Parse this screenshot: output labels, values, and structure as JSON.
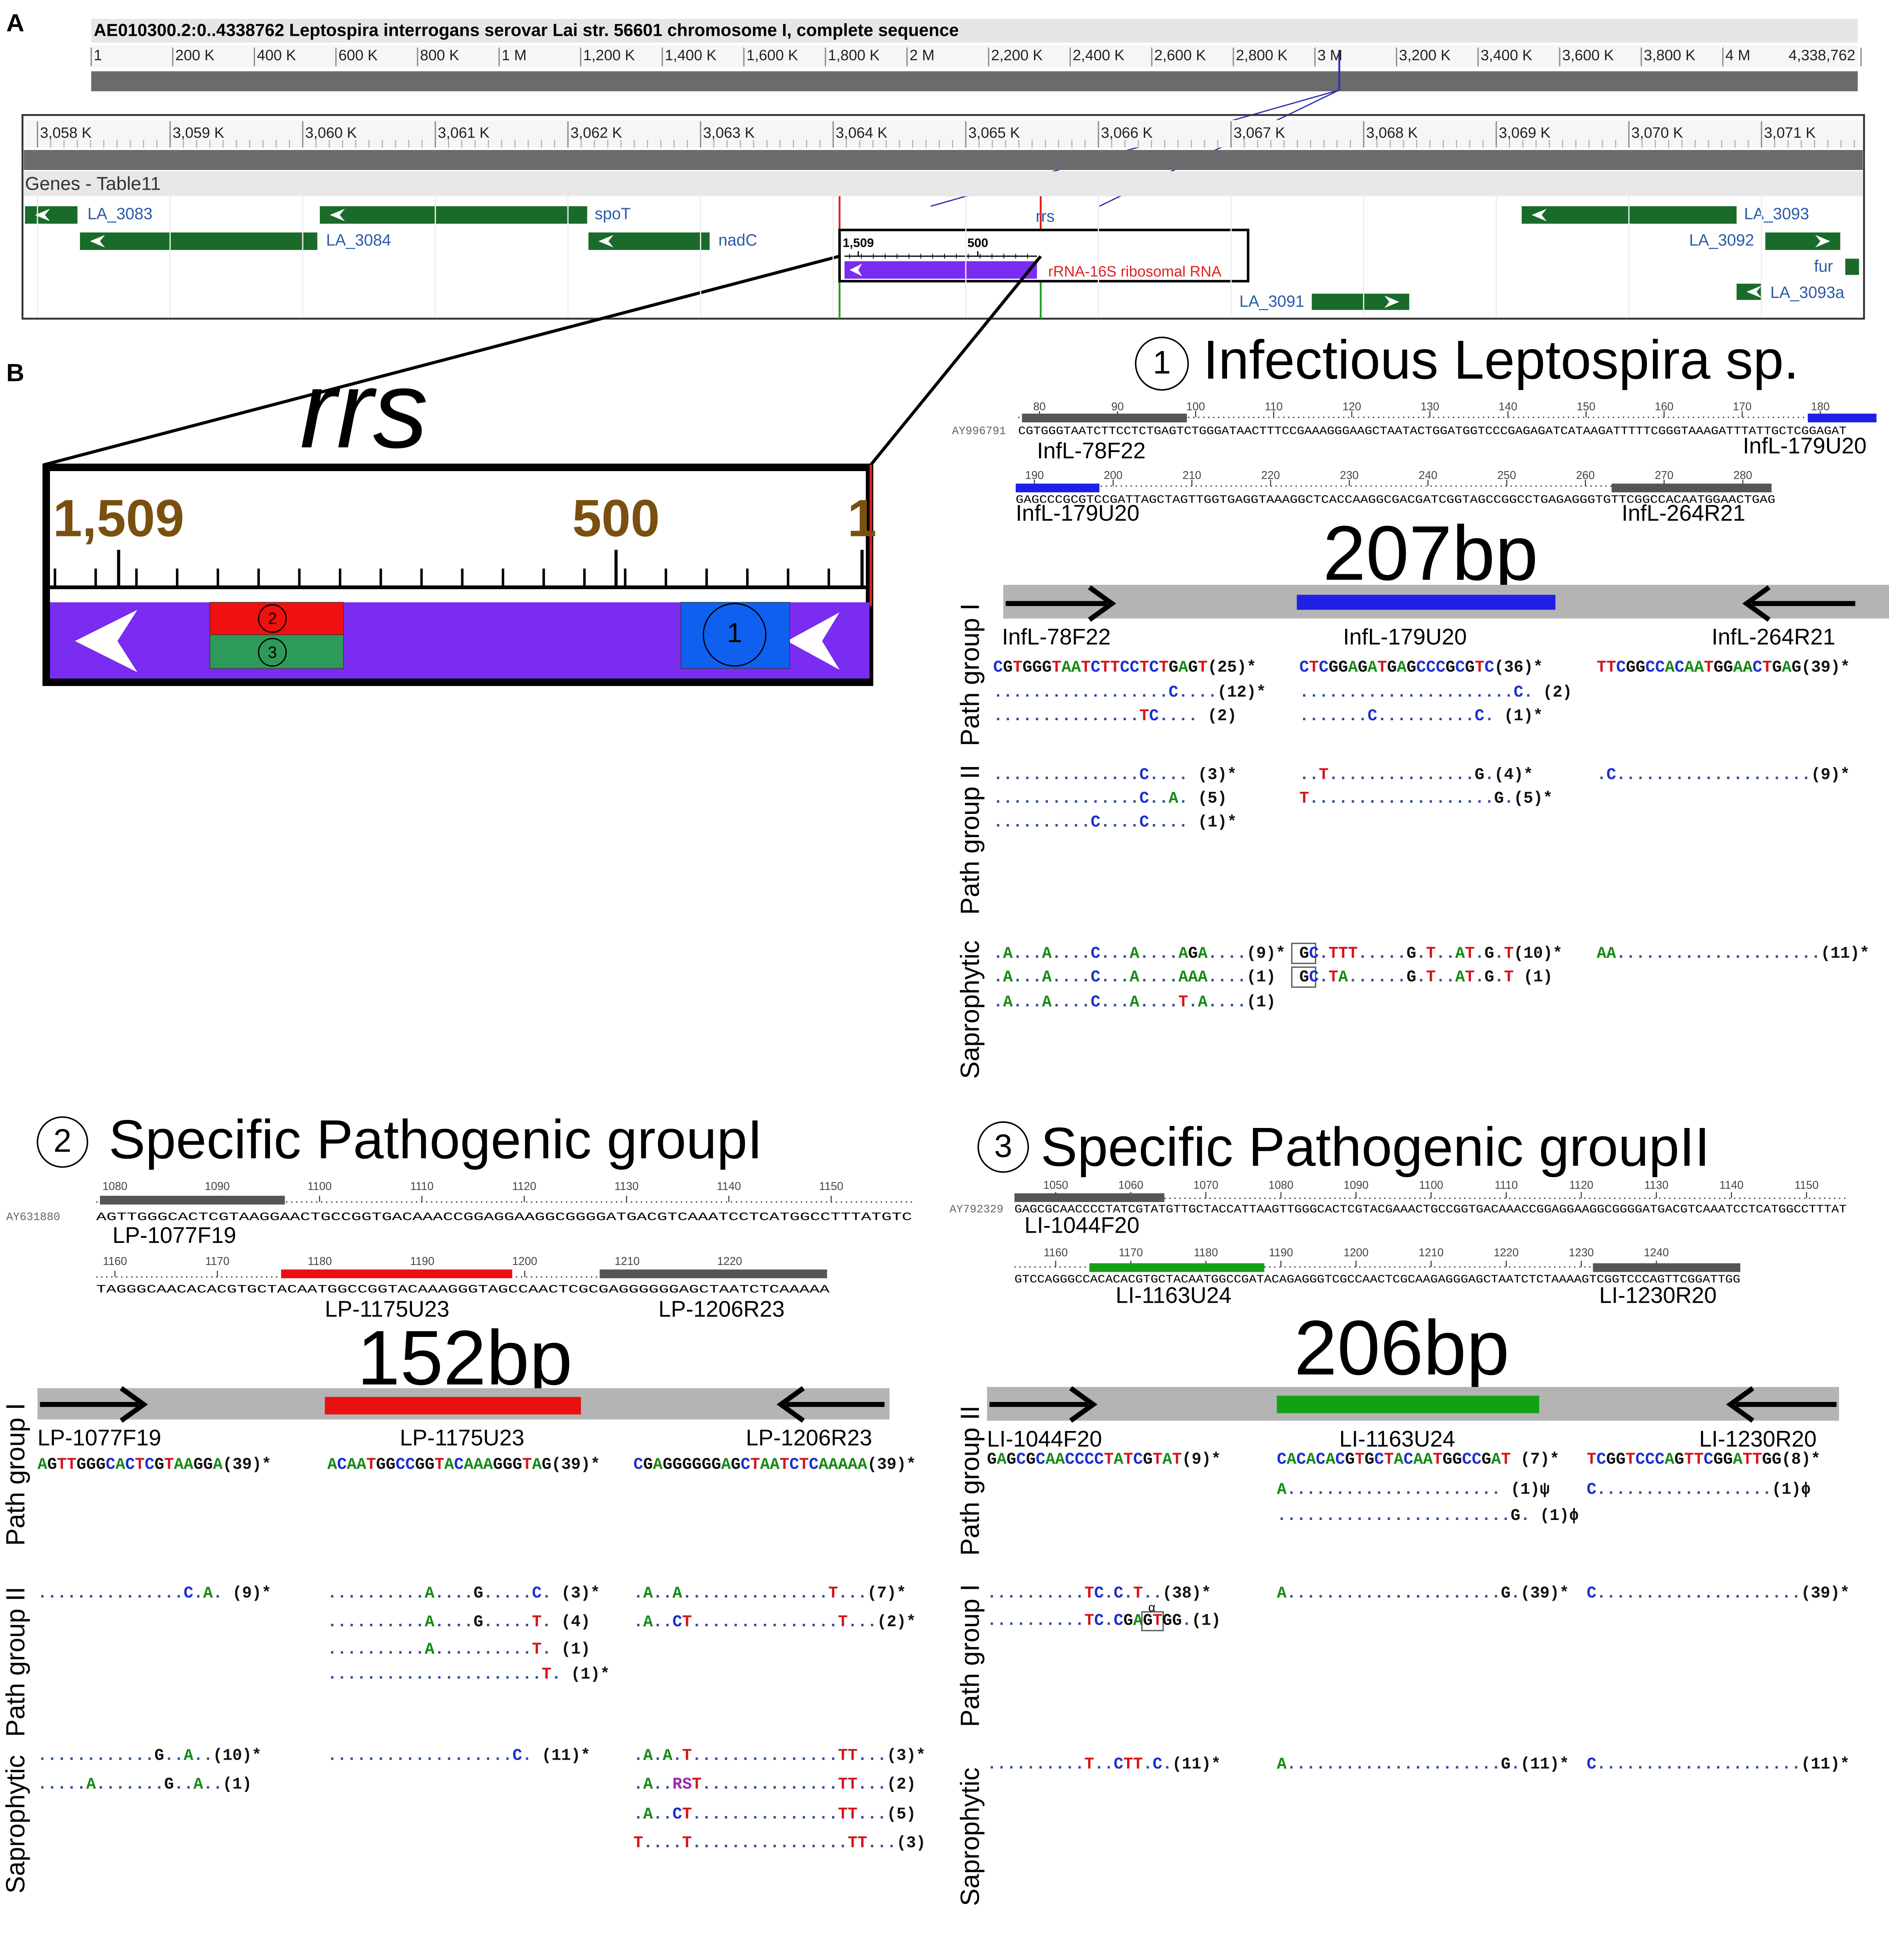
{
  "panel_a": {
    "label": "A",
    "title": "AE010300.2:0..4338762 Leptospira interrogans serovar Lai str. 56601 chromosome I, complete sequence",
    "overview_ticks": [
      1,
      {
        "value": 200000,
        "label": "200 K"
      },
      {
        "value": 400000,
        "label": "400 K"
      },
      {
        "value": 600000,
        "label": "600 K"
      },
      {
        "value": 800000,
        "label": "800 K"
      },
      {
        "value": 1000000,
        "label": "1 M"
      },
      {
        "value": 1200000,
        "label": "1,200 K"
      },
      {
        "value": 1400000,
        "label": "1,400 K"
      },
      {
        "value": 1600000,
        "label": "1,600 K"
      },
      {
        "value": 1800000,
        "label": "1,800 K"
      },
      {
        "value": 2000000,
        "label": "2 M"
      },
      {
        "value": 2200000,
        "label": "2,200 K"
      },
      {
        "value": 2400000,
        "label": "2,400 K"
      },
      {
        "value": 2600000,
        "label": "2,600 K"
      },
      {
        "value": 2800000,
        "label": "2,800 K"
      },
      {
        "value": 3000000,
        "label": "3 M"
      },
      {
        "value": 3200000,
        "label": "3,200 K"
      },
      {
        "value": 3400000,
        "label": "3,400 K"
      },
      {
        "value": 3600000,
        "label": "3,600 K"
      },
      {
        "value": 3800000,
        "label": "3,800 K"
      },
      {
        "value": 4000000,
        "label": "4 M"
      },
      {
        "value": 4338762,
        "label": "4,338,762"
      }
    ],
    "detail_ticks": [
      {
        "value": 3058000,
        "label": "3,058 K"
      },
      {
        "value": 3059000,
        "label": "3,059 K"
      },
      {
        "value": 3060000,
        "label": "3,060 K"
      },
      {
        "value": 3061000,
        "label": "3,061 K"
      },
      {
        "value": 3062000,
        "label": "3,062 K"
      },
      {
        "value": 3063000,
        "label": "3,063 K"
      },
      {
        "value": 3064000,
        "label": "3,064 K"
      },
      {
        "value": 3065000,
        "label": "3,065 K"
      },
      {
        "value": 3066000,
        "label": "3,066 K"
      },
      {
        "value": 3067000,
        "label": "3,067 K"
      },
      {
        "value": 3068000,
        "label": "3,068 K"
      },
      {
        "value": 3069000,
        "label": "3,069 K"
      },
      {
        "value": 3070000,
        "label": "3,070 K"
      },
      {
        "value": 3071000,
        "label": "3,071 K"
      }
    ],
    "track": "Genes - Table11",
    "genes": [
      "LA_3083",
      "spoT",
      "LA_3084",
      "nadC",
      "rrs",
      "LA_3093",
      "LA_3092",
      "fur",
      "LA_3091",
      "LA_3093a"
    ],
    "feature_ticks": [
      {
        "value": 1509,
        "label": "1,509"
      },
      500
    ],
    "feature": "rRNA-16S ribosomal RNA"
  },
  "panel_b": {
    "label": "B",
    "gene": "rrs",
    "ticks": [
      {
        "value": 1509,
        "label": "1,509"
      },
      500,
      1
    ],
    "regions": [
      "1",
      "2",
      "3"
    ]
  },
  "sections": [
    {
      "number": "1",
      "title": "Infectious Leptospira sp.",
      "accession": "AY996791",
      "reference": [
        {
          "positions": [
            80,
            90,
            100,
            110,
            120,
            130,
            140,
            150,
            160,
            170,
            180
          ],
          "sequence": "CGTGGGTAATCTTCCTCTGAGTCTGGGATAACTTTCCGAAAGGGAAGCTAATACTGGATGGTCCCGAGAGATCATAAGATTTTTCGGGTAAAGATTTATTGCTCGGAGAT",
          "primers": [
            "InfL-78F22",
            "InfL-179U20"
          ]
        },
        {
          "positions": [
            190,
            200,
            210,
            220,
            230,
            240,
            250,
            260,
            270,
            280
          ],
          "sequence": "GAGCCCGCGTCCGATTAGCTAGTTGGTGAGGTAAAGGCTCACCAAGGCGACGATCGGTAGCCGGCCTGAGAGGGTGTTCGGCCACAATGGAACTGAG",
          "primers": [
            "InfL-179U20",
            "InfL-264R21"
          ]
        }
      ],
      "amplicon": "207bp",
      "amplicon_primers": [
        "InfL-78F22",
        "InfL-179U20",
        "InfL-264R21"
      ],
      "groups": [
        "Path group I",
        "Path group II",
        "Saprophytic"
      ],
      "alignment": [
        [
          "CGTGGGTAATCTTCCTCTGAGT(25)*",
          "CTCGGAGATGAGCCCGCGTC(36)*",
          "TTCGGCCACAATGGAACTGAG(39)*"
        ],
        [
          "..................C....(12)*",
          "......................C. (2)",
          null
        ],
        [
          "...............TC.... (2)",
          ".......C..........C. (1)*",
          null
        ],
        [
          "...............C.... (3)*",
          "..T...............G.(4)*",
          ".C....................(9)*"
        ],
        [
          "...............C..A. (5)",
          "T...................G.(5)*",
          null
        ],
        [
          "..........C....C.... (1)*",
          null,
          null
        ],
        [
          ".A...A....C...A....AGA....(9)*",
          "GC.TTT.....G.T..AT.G.T(10)*",
          "AA.....................(11)*"
        ],
        [
          ".A...A....C...A....AAA....(1)",
          "GC.TA......G.T..AT.G.T (1)",
          null
        ],
        [
          ".A...A....C...A....T.A....(1)",
          null,
          null
        ]
      ]
    },
    {
      "number": "2",
      "title": "Specific Pathogenic groupI",
      "accession": "AY631880",
      "reference": [
        {
          "positions": [
            1080,
            1090,
            1100,
            1110,
            1120,
            1130,
            1140,
            1150
          ],
          "sequence": "AGTTGGGCACTCGTAAGGAACTGCCGGTGACAAACCGGAGGAAGGCGGGGATGACGTCAAATCCTCATGGCCTTTATGTC",
          "primers": [
            "LP-1077F19"
          ]
        },
        {
          "positions": [
            1160,
            1170,
            1180,
            1190,
            1200,
            1210,
            1220
          ],
          "sequence": "TAGGGCAACACACGTGCTACAATGGCCGGTACAAAGGGTAGCCAACTCGCGAGGGGGGAGCTAATCTCAAAAA",
          "primers": [
            "LP-1175U23",
            "LP-1206R23"
          ]
        }
      ],
      "amplicon": "152bp",
      "amplicon_primers": [
        "LP-1077F19",
        "LP-1175U23",
        "LP-1206R23"
      ],
      "groups": [
        "Path group I",
        "Path group II",
        "Saprophytic"
      ],
      "alignment": [
        [
          "AGTTGGGCACTCGTAAGGA(39)*",
          "ACAATGGCCGGTACAAAGGGTAG(39)*",
          "CGAGGGGGGAGCTAATCTCAAAAA(39)*"
        ],
        [
          "...............C.A. (9)*",
          "..........A....G.....C. (3)*",
          ".A..A...............T...(7)*"
        ],
        [
          null,
          "..........A....G.....T. (4)",
          ".A..CT...............T...(2)*"
        ],
        [
          null,
          "..........A..........T. (1)",
          null
        ],
        [
          null,
          "......................T. (1)*",
          null
        ],
        [
          "............G..A..(10)*",
          "...................C. (11)*",
          ".A.A.T...............TT...(3)*"
        ],
        [
          ".....A.......G..A..(1)",
          null,
          ".A..RST..............TT...(2)"
        ],
        [
          null,
          null,
          ".A..CT...............TT...(5)"
        ],
        [
          null,
          null,
          "T....T................TT...(3)"
        ]
      ]
    },
    {
      "number": "3",
      "title": "Specific Pathogenic groupII",
      "accession": "AY792329",
      "reference": [
        {
          "positions": [
            1050,
            1060,
            1070,
            1080,
            1090,
            1100,
            1110,
            1120,
            1130,
            1140,
            1150
          ],
          "sequence": "GAGCGCAACCCCTATCGTATGTTGCTACCATTAAGTTGGGCACTCGTACGAAACTGCCGGTGACAAACCGGAGGAAGGCGGGGATGACGTCAAATCCTCATGGCCTTTAT",
          "primers": [
            "LI-1044F20"
          ]
        },
        {
          "positions": [
            1160,
            1170,
            1180,
            1190,
            1200,
            1210,
            1220,
            1230,
            1240
          ],
          "sequence": "GTCCAGGGCCACACACGTGCTACAATGGCCGATACAGAGGGTCGCCAACTCGCAAGAGGGAGCTAATCTCTAAAAGTCGGTCCCAGTTCGGATTGG",
          "primers": [
            "LI-1163U24",
            "LI-1230R20"
          ]
        }
      ],
      "amplicon": "206bp",
      "amplicon_primers": [
        "LI-1044F20",
        "LI-1163U24",
        "LI-1230R20"
      ],
      "groups": [
        "Path group II",
        "Path group I",
        "Saprophytic"
      ],
      "alignment": [
        [
          "GAGCGCAACCCCTATCGTAT(9)*",
          "CACACACGTGCTACAATGGCCGAT (7)*",
          "TCGGTCCCAGTTCGGATTGG(8)*"
        ],
        [
          null,
          "A...................... (1)ψ",
          "C..................(1)ϕ"
        ],
        [
          null,
          "........................G. (1)ϕ",
          null
        ],
        [
          "..........TC.C.T..(38)*",
          "A......................G.(39)*",
          "C.....................(39)*"
        ],
        [
          "..........TC.CGAGTGG.(1)",
          null,
          null
        ],
        [
          "..........T..CTT.C.(11)*",
          "A......................G.(11)*",
          "C.....................(11)*"
        ]
      ],
      "alignment_note": "α"
    }
  ]
}
